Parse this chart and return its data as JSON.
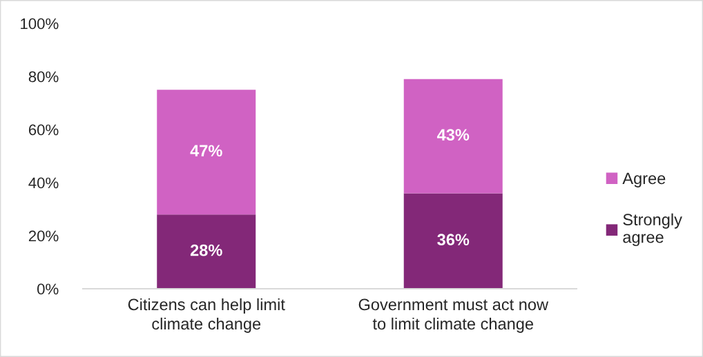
{
  "chart_data": {
    "type": "bar",
    "stacked": true,
    "categories": [
      "Citizens can help limit\nclimate change",
      "Government must act now\nto limit climate change"
    ],
    "series": [
      {
        "name": "Strongly\nagree",
        "color": "#832878",
        "values": [
          28,
          36
        ],
        "value_labels": [
          "28%",
          "36%"
        ]
      },
      {
        "name": "Agree",
        "color": "#d062c3",
        "values": [
          47,
          43
        ],
        "value_labels": [
          "47%",
          "43%"
        ]
      }
    ],
    "ylim": [
      0,
      100
    ],
    "yticks": [
      {
        "value": 0,
        "label": "0%"
      },
      {
        "value": 20,
        "label": "20%"
      },
      {
        "value": 40,
        "label": "40%"
      },
      {
        "value": 60,
        "label": "60%"
      },
      {
        "value": 80,
        "label": "80%"
      },
      {
        "value": 100,
        "label": "100%"
      }
    ],
    "grid": false,
    "legend": "right"
  }
}
